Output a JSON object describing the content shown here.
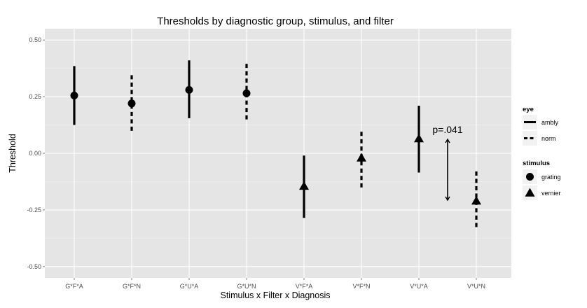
{
  "chart_data": {
    "type": "scatter",
    "title": "Thresholds by diagnostic group, stimulus, and filter",
    "xlabel": "Stimulus x Filter x Diagnosis",
    "ylabel": "Threshold",
    "ylim": [
      -0.55,
      0.55
    ],
    "yticks": [
      0.5,
      0.25,
      0.0,
      -0.25,
      -0.5
    ],
    "ytick_labels": [
      "0.50",
      "0.25",
      "0.00",
      "-0.25",
      "-0.50"
    ],
    "categories": [
      "G*F*A",
      "G*F*N",
      "G*U*A",
      "G*U*N",
      "V*F*A",
      "V*F*N",
      "V*U*A",
      "V*U*N"
    ],
    "grid": true,
    "legend_position": "right",
    "points": [
      {
        "x": "G*F*A",
        "y": 0.255,
        "low": 0.125,
        "high": 0.385,
        "eye": "ambly",
        "stimulus": "grating"
      },
      {
        "x": "G*F*N",
        "y": 0.22,
        "low": 0.09,
        "high": 0.345,
        "eye": "norm",
        "stimulus": "grating"
      },
      {
        "x": "G*U*A",
        "y": 0.28,
        "low": 0.155,
        "high": 0.41,
        "eye": "ambly",
        "stimulus": "grating"
      },
      {
        "x": "G*U*N",
        "y": 0.265,
        "low": 0.14,
        "high": 0.395,
        "eye": "norm",
        "stimulus": "grating"
      },
      {
        "x": "V*F*A",
        "y": -0.145,
        "low": -0.285,
        "high": -0.01,
        "eye": "ambly",
        "stimulus": "vernier"
      },
      {
        "x": "V*F*N",
        "y": -0.02,
        "low": -0.16,
        "high": 0.095,
        "eye": "norm",
        "stimulus": "vernier"
      },
      {
        "x": "V*U*A",
        "y": 0.065,
        "low": -0.085,
        "high": 0.21,
        "eye": "ambly",
        "stimulus": "vernier"
      },
      {
        "x": "V*U*N",
        "y": -0.21,
        "low": -0.335,
        "high": -0.08,
        "eye": "norm",
        "stimulus": "vernier"
      }
    ],
    "annotation": {
      "text": "p=.041",
      "x_between": [
        "V*U*A",
        "V*U*N"
      ],
      "y_top": 0.065,
      "y_bottom": -0.21
    },
    "legend": {
      "eye": {
        "title": "eye",
        "entries": [
          "ambly",
          "norm"
        ]
      },
      "stimulus": {
        "title": "stimulus",
        "entries": [
          "grating",
          "vernier"
        ]
      }
    }
  }
}
